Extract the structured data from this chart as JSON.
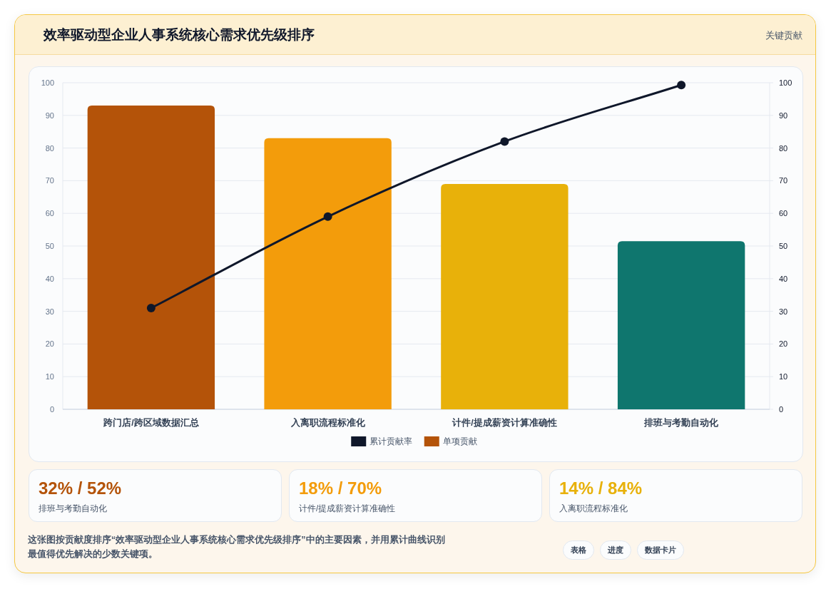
{
  "chart_data": {
    "type": "bar",
    "title": "效率驱动型企业人事系统核心需求优先级排序",
    "subtitle": "关键贡献",
    "categories": [
      "跨门店/跨区域数据汇总",
      "入离职流程标准化",
      "计件/提成薪资计算准确性",
      "排班与考勤自动化"
    ],
    "series": [
      {
        "name": "累计贡献率",
        "type": "line",
        "axis": "y2",
        "color": "#0f172a",
        "values": [
          31,
          59,
          82,
          99.3
        ]
      },
      {
        "name": "单项贡献",
        "color": "#b45309",
        "colors": [
          "#b45309",
          "#f39c0b",
          "#e8b10a",
          "#0f766e"
        ],
        "values": [
          93,
          83,
          69,
          51.5
        ]
      }
    ],
    "ylim": [
      0,
      100
    ],
    "yticks": [
      0,
      10,
      20,
      30,
      40,
      50,
      60,
      70,
      80,
      90,
      100
    ],
    "y2lim": [
      0,
      100
    ],
    "y2ticks": [
      0,
      10,
      20,
      30,
      40,
      50,
      60,
      70,
      80,
      90,
      100
    ],
    "grid": "y",
    "legend": "bottom",
    "marker": "circle",
    "annotations": [
      "32% / 52%",
      "排班与考勤自动化",
      "18% / 70%",
      "计件/提成薪资计算准确性",
      "14% / 84%",
      "入离职流程标准化",
      "这张图按贡献度排序“效率驱动型企业人事系统核心需求优先级排序”中的主要因素，并用累计曲线识别最值得优先解决的少数关键项。",
      "表格",
      "进度",
      "数据卡片"
    ]
  }
}
